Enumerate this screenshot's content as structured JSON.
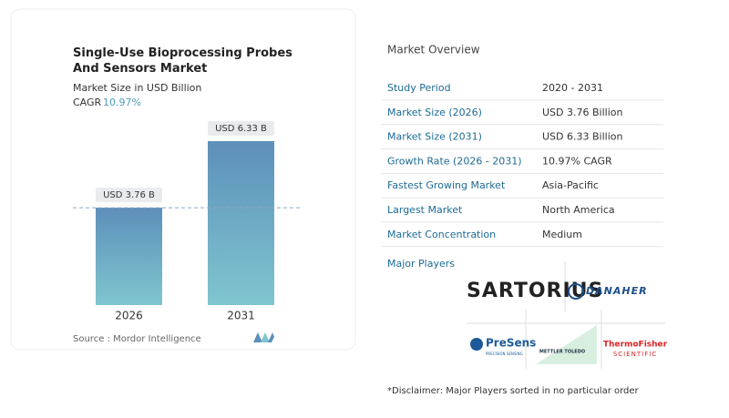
{
  "chart_data": {
    "type": "bar",
    "title": "Single-Use Bioprocessing Probes And Sensors Market",
    "subtitle": "Market Size in USD Billion",
    "cagr_label": "CAGR",
    "cagr_value": "10.97%",
    "categories": [
      "2026",
      "2031"
    ],
    "values": [
      3.76,
      6.33
    ],
    "value_labels": [
      "USD 3.76 B",
      "USD 6.33 B"
    ],
    "color": "#6a9fc4",
    "source": "Source :  Mordor Intelligence"
  },
  "overview": {
    "title": "Market Overview",
    "rows": [
      [
        "Study Period",
        "2020 - 2031"
      ],
      [
        "Market Size (2026)",
        "USD 3.76 Billion"
      ],
      [
        "Market Size (2031)",
        "USD 6.33 Billion"
      ],
      [
        "Growth Rate (2026 - 2031)",
        "10.97% CAGR"
      ],
      [
        "Fastest Growing Market",
        "Asia-Pacific"
      ],
      [
        "Largest Market",
        "North America"
      ],
      [
        "Market Concentration",
        "Medium"
      ]
    ]
  },
  "major_players": {
    "title": "Major Players",
    "logos": [
      "SARTORIUS",
      "DANAHER",
      "PreSens",
      "PRECISION SENSING",
      "METTLER TOLEDO",
      "ThermoFisher",
      "SCIENTIFIC"
    ]
  },
  "disclaimer": "*Disclaimer: Major Players sorted in no particular order"
}
